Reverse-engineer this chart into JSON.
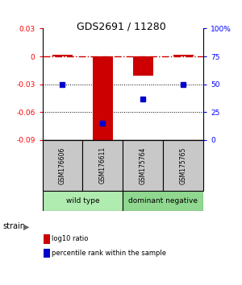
{
  "title": "GDS2691 / 11280",
  "samples": [
    "GSM176606",
    "GSM176611",
    "GSM175764",
    "GSM175765"
  ],
  "log10_ratio": [
    0.002,
    -0.09,
    -0.021,
    0.002
  ],
  "percentile_rank": [
    50,
    15,
    37,
    50
  ],
  "ylim_left": [
    -0.09,
    0.03
  ],
  "ylim_right": [
    0,
    100
  ],
  "yticks_left": [
    -0.09,
    -0.06,
    -0.03,
    0,
    0.03
  ],
  "yticks_right": [
    0,
    25,
    50,
    75,
    100
  ],
  "ytick_labels_left": [
    "-0.09",
    "-0.06",
    "-0.03",
    "0",
    "0.03"
  ],
  "ytick_labels_right": [
    "0",
    "25",
    "50",
    "75",
    "100%"
  ],
  "bar_color_log10": "#cc0000",
  "bar_color_pct": "#0000cc",
  "dashed_line_color": "#cc0000",
  "group1_label": "wild type",
  "group2_label": "dominant negative",
  "group1_color": "#b0ebb0",
  "group2_color": "#90d890",
  "sample_box_color": "#c8c8c8",
  "legend_log10": "log10 ratio",
  "legend_pct": "percentile rank within the sample",
  "bar_width": 0.5
}
